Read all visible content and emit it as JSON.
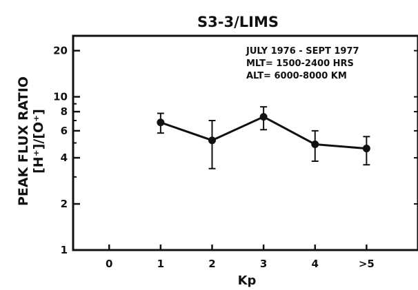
{
  "chart_data": {
    "type": "line",
    "title": "S3-3/LIMS",
    "annotations": [
      "JULY 1976 - SEPT 1977",
      "MLT= 1500-2400 HRS",
      "ALT= 6000-8000 KM"
    ],
    "xlabel": "Kp",
    "ylabel_line1": "PEAK FLUX RATIO",
    "ylabel_line2": "[H⁺]/[O⁺]",
    "y_scale": "log",
    "xlim": [
      -0.7,
      6
    ],
    "ylim": [
      1,
      25
    ],
    "x_tick_labels": [
      "0",
      "1",
      "2",
      "3",
      "4",
      ">5"
    ],
    "y_tick_labels": [
      "1",
      "2",
      "4",
      "6",
      "8",
      "10",
      "20"
    ],
    "grid": false,
    "series": [
      {
        "x": [
          1,
          2,
          3,
          4,
          5
        ],
        "y": [
          6.8,
          5.2,
          7.4,
          4.9,
          4.6
        ],
        "y_err_low": [
          5.8,
          3.4,
          6.1,
          3.8,
          3.6
        ],
        "y_err_high": [
          7.8,
          7.0,
          8.6,
          6.0,
          5.5
        ]
      }
    ]
  }
}
